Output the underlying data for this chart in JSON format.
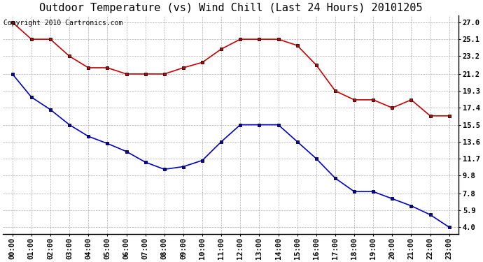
{
  "title": "Outdoor Temperature (vs) Wind Chill (Last 24 Hours) 20101205",
  "copyright_text": "Copyright 2010 Cartronics.com",
  "x_labels": [
    "00:00",
    "01:00",
    "02:00",
    "03:00",
    "04:00",
    "05:00",
    "06:00",
    "07:00",
    "08:00",
    "09:00",
    "10:00",
    "11:00",
    "12:00",
    "13:00",
    "14:00",
    "15:00",
    "16:00",
    "17:00",
    "18:00",
    "19:00",
    "20:00",
    "21:00",
    "22:00",
    "23:00"
  ],
  "red_data": [
    27.0,
    25.1,
    25.1,
    23.2,
    21.9,
    21.9,
    21.2,
    21.2,
    21.2,
    21.9,
    22.5,
    24.0,
    25.1,
    25.1,
    25.1,
    24.4,
    22.2,
    19.3,
    18.3,
    18.3,
    17.4,
    18.3,
    16.5,
    16.5
  ],
  "blue_data": [
    21.2,
    18.6,
    17.2,
    15.5,
    14.2,
    13.4,
    12.5,
    11.3,
    10.5,
    10.8,
    11.5,
    13.6,
    15.5,
    15.5,
    15.5,
    13.6,
    11.7,
    9.5,
    8.0,
    8.0,
    7.2,
    6.4,
    5.4,
    4.0
  ],
  "red_color": "#cc0000",
  "blue_color": "#0000cc",
  "marker_edge_color": "#000000",
  "bg_color": "#ffffff",
  "grid_color": "#b0b0b0",
  "yticks": [
    4.0,
    5.9,
    7.8,
    9.8,
    11.7,
    13.6,
    15.5,
    17.4,
    19.3,
    21.2,
    23.2,
    25.1,
    27.0
  ],
  "ylim": [
    3.2,
    27.8
  ],
  "xlim": [
    -0.5,
    23.5
  ],
  "title_fontsize": 11,
  "axis_fontsize": 7.5,
  "copyright_fontsize": 7,
  "fig_width": 6.9,
  "fig_height": 3.75,
  "dpi": 100
}
